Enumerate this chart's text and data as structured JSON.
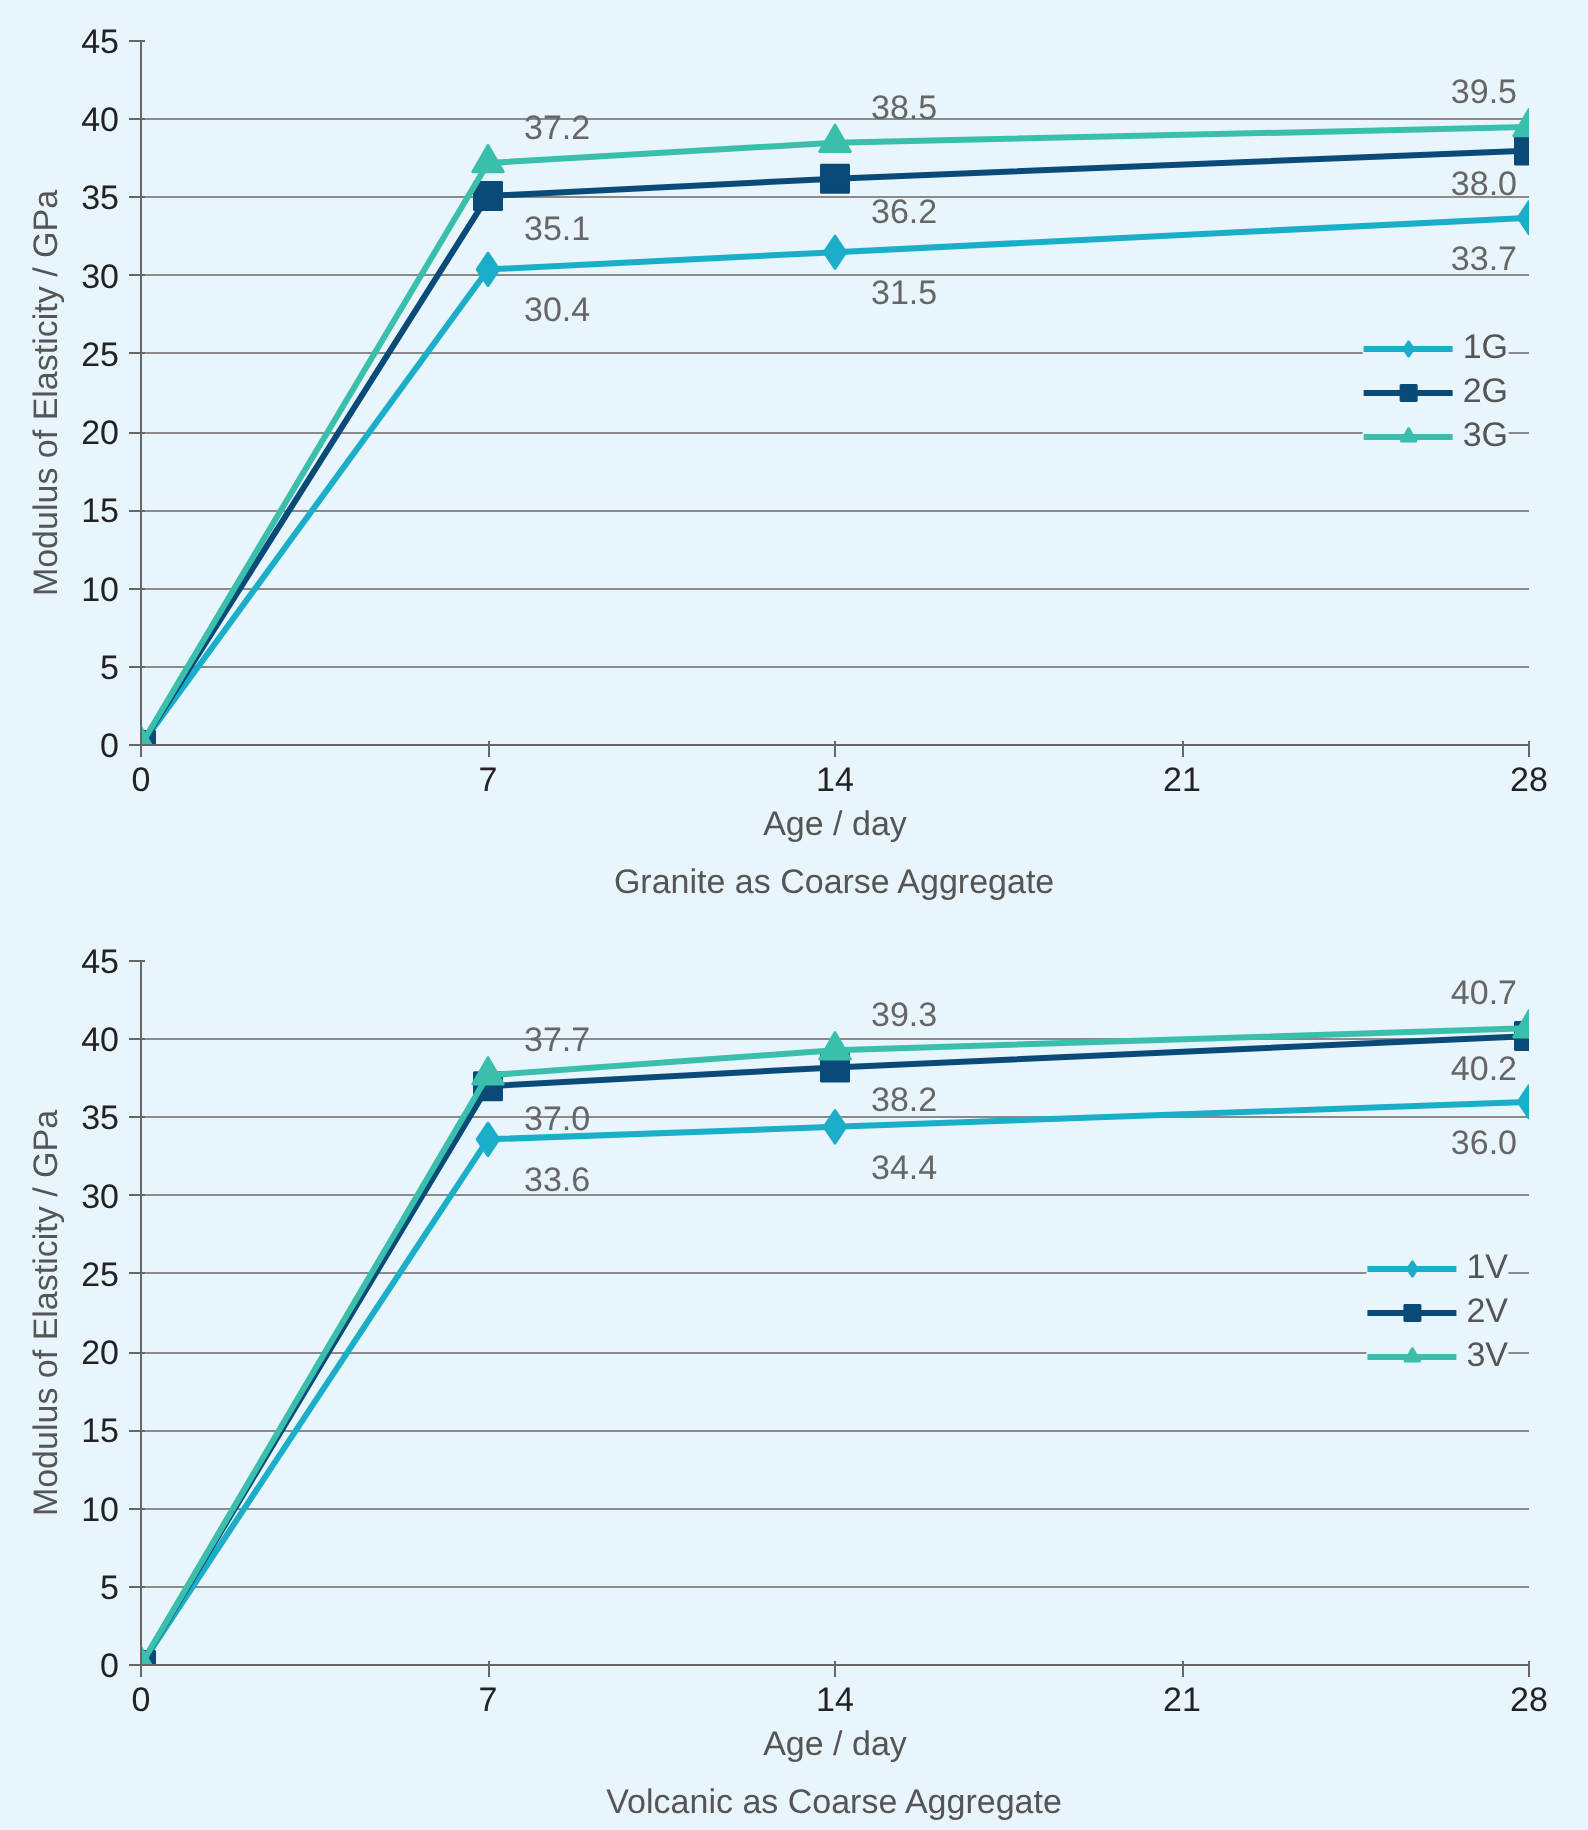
{
  "chart_data": [
    {
      "type": "line",
      "title": "Granite as Coarse Aggregate",
      "xlabel": "Age / day",
      "ylabel": "Modulus of Elasticity / GPa",
      "x": [
        0,
        7,
        14,
        28
      ],
      "xlim": [
        0,
        28
      ],
      "xticks": [
        0,
        7,
        14,
        21,
        28
      ],
      "ylim": [
        0,
        45
      ],
      "yticks": [
        0,
        5,
        10,
        15,
        20,
        25,
        30,
        35,
        40,
        45
      ],
      "grid": "y",
      "legend": "right",
      "series": [
        {
          "name": "1G",
          "color": "#1aaec8",
          "marker": "diamond",
          "values": [
            0,
            30.4,
            31.5,
            33.7
          ],
          "value_labels": [
            null,
            "30.4",
            "31.5",
            "33.7"
          ]
        },
        {
          "name": "2G",
          "color": "#0a4a78",
          "marker": "square",
          "values": [
            0,
            35.1,
            36.2,
            38.0
          ],
          "value_labels": [
            null,
            "35.1",
            "36.2",
            "38.0"
          ]
        },
        {
          "name": "3G",
          "color": "#3bbfad",
          "marker": "triangle",
          "values": [
            0,
            37.2,
            38.5,
            39.5
          ],
          "value_labels": [
            null,
            "37.2",
            "38.5",
            "39.5"
          ]
        }
      ]
    },
    {
      "type": "line",
      "title": "Volcanic as Coarse Aggregate",
      "xlabel": "Age / day",
      "ylabel": "Modulus of Elasticity / GPa",
      "x": [
        0,
        7,
        14,
        28
      ],
      "xlim": [
        0,
        28
      ],
      "xticks": [
        0,
        7,
        14,
        21,
        28
      ],
      "ylim": [
        0,
        45
      ],
      "yticks": [
        0,
        5,
        10,
        15,
        20,
        25,
        30,
        35,
        40,
        45
      ],
      "grid": "y",
      "legend": "right",
      "series": [
        {
          "name": "1V",
          "color": "#1aaec8",
          "marker": "diamond",
          "values": [
            0,
            33.6,
            34.4,
            36.0
          ],
          "value_labels": [
            null,
            "33.6",
            "34.4",
            "36.0"
          ]
        },
        {
          "name": "2V",
          "color": "#0a4a78",
          "marker": "square",
          "values": [
            0,
            37.0,
            38.2,
            40.2
          ],
          "value_labels": [
            null,
            "37.0",
            "38.2",
            "40.2"
          ]
        },
        {
          "name": "3V",
          "color": "#3bbfad",
          "marker": "triangle",
          "values": [
            0,
            37.7,
            39.3,
            40.7
          ],
          "value_labels": [
            null,
            "37.7",
            "39.3",
            "40.7"
          ]
        }
      ]
    }
  ]
}
